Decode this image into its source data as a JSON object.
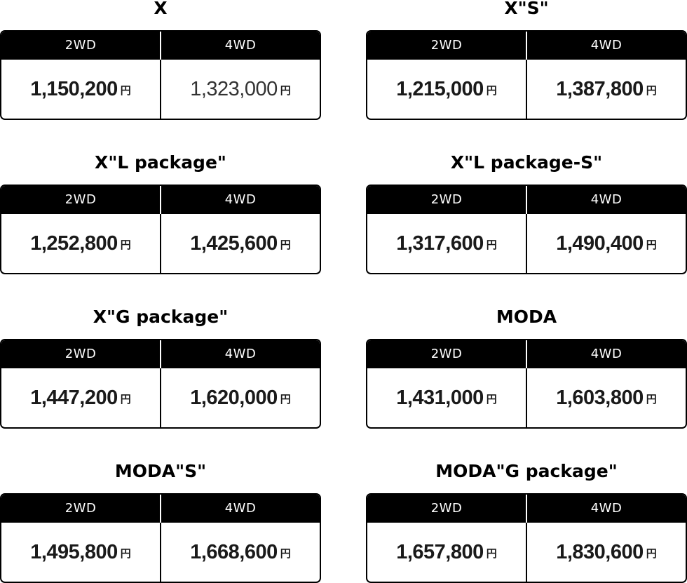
{
  "currency_symbol": "円",
  "column_labels": {
    "two_wd": "2WD",
    "four_wd": "4WD"
  },
  "grades": [
    {
      "name": "X",
      "price_2wd": "1,150,200",
      "price_4wd": "1,323,000"
    },
    {
      "name": "X\"S\"",
      "price_2wd": "1,215,000",
      "price_4wd": "1,387,800"
    },
    {
      "name": "X\"L package\"",
      "price_2wd": "1,252,800",
      "price_4wd": "1,425,600"
    },
    {
      "name": "X\"L package-S\"",
      "price_2wd": "1,317,600",
      "price_4wd": "1,490,400"
    },
    {
      "name": "X\"G package\"",
      "price_2wd": "1,447,200",
      "price_4wd": "1,620,000"
    },
    {
      "name": "MODA",
      "price_2wd": "1,431,000",
      "price_4wd": "1,603,800"
    },
    {
      "name": "MODA\"S\"",
      "price_2wd": "1,495,800",
      "price_4wd": "1,668,600"
    },
    {
      "name": "MODA\"G package\"",
      "price_2wd": "1,657,800",
      "price_4wd": "1,830,600"
    }
  ],
  "colors": {
    "header_background": "#000000",
    "header_text": "#ffffff",
    "border": "#000000",
    "price_text": "#1a1a1a"
  }
}
